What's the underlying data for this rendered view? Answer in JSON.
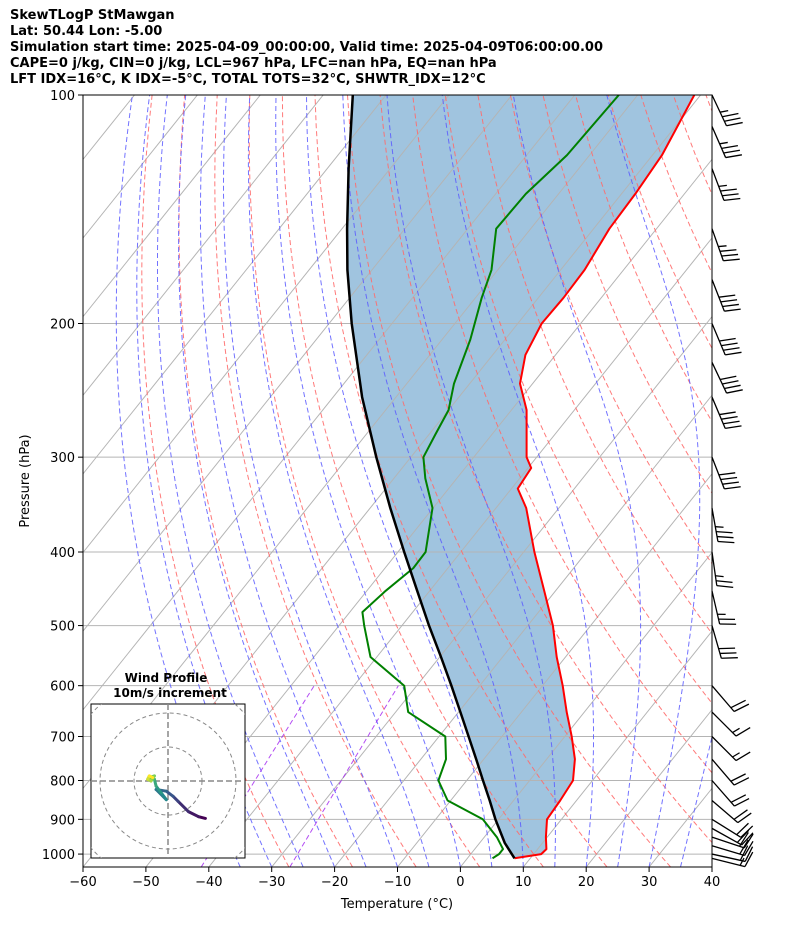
{
  "header": {
    "lines": [
      "SkewTLogP StMawgan",
      "Lat: 50.44   Lon: -5.00",
      "Simulation start time: 2025-04-09_00:00:00, Valid time: 2025-04-09T06:00:00.00",
      "CAPE=0 j/kg, CIN=0 j/kg, LCL=967 hPa, LFC=nan hPa, EQ=nan hPa",
      "LFT IDX=16°C, K IDX=-5°C, TOTAL TOTS=32°C, SHWTR_IDX=12°C"
    ]
  },
  "chart_data": [
    {
      "type": "line",
      "subtype": "skew-t-log-p",
      "xlabel": "Temperature (°C)",
      "ylabel": "Pressure (hPa)",
      "xlim": [
        -60,
        40
      ],
      "ylim": [
        1040,
        100
      ],
      "y_scale": "log",
      "xticks": [
        -60,
        -50,
        -40,
        -30,
        -20,
        -10,
        0,
        10,
        20,
        30,
        40
      ],
      "xtick_labels": [
        "−60",
        "−50",
        "−40",
        "−30",
        "−20",
        "−10",
        "0",
        "10",
        "20",
        "30",
        "40"
      ],
      "yticks": [
        100,
        200,
        300,
        400,
        500,
        600,
        700,
        800,
        900,
        1000
      ],
      "grid": true,
      "colors": {
        "temperature": "#ff0000",
        "dewpoint": "#008000",
        "parcel": "#000000",
        "shade": "#a0c4df",
        "dry_adiabat": "#ff6b6b",
        "moist_adiabat": "#5a5aff",
        "mixing_ratio": "#a020f0",
        "isotherm": "#b4b4b4"
      },
      "series": [
        {
          "role": "temperature",
          "points": [
            {
              "p": 1013,
              "t": 7.5
            },
            {
              "p": 1000,
              "t": 11.2
            },
            {
              "p": 985,
              "t": 11.4
            },
            {
              "p": 950,
              "t": 9.8
            },
            {
              "p": 900,
              "t": 7.7
            },
            {
              "p": 850,
              "t": 7.4
            },
            {
              "p": 800,
              "t": 6.9
            },
            {
              "p": 750,
              "t": 4.5
            },
            {
              "p": 700,
              "t": 1.1
            },
            {
              "p": 650,
              "t": -2.8
            },
            {
              "p": 600,
              "t": -6.8
            },
            {
              "p": 550,
              "t": -11.4
            },
            {
              "p": 500,
              "t": -16.0
            },
            {
              "p": 450,
              "t": -21.8
            },
            {
              "p": 400,
              "t": -28.3
            },
            {
              "p": 350,
              "t": -35.2
            },
            {
              "p": 330,
              "t": -39.0
            },
            {
              "p": 310,
              "t": -39.5
            },
            {
              "p": 300,
              "t": -41.6
            },
            {
              "p": 280,
              "t": -44.5
            },
            {
              "p": 260,
              "t": -47.6
            },
            {
              "p": 240,
              "t": -52.0
            },
            {
              "p": 220,
              "t": -54.8
            },
            {
              "p": 200,
              "t": -56.2
            },
            {
              "p": 185,
              "t": -56.0
            },
            {
              "p": 170,
              "t": -56.2
            },
            {
              "p": 150,
              "t": -57.5
            },
            {
              "p": 135,
              "t": -57.8
            },
            {
              "p": 120,
              "t": -58.5
            },
            {
              "p": 100,
              "t": -61.0
            }
          ]
        },
        {
          "role": "dewpoint",
          "points": [
            {
              "p": 1013,
              "t": 4.0
            },
            {
              "p": 1000,
              "t": 4.5
            },
            {
              "p": 985,
              "t": 4.5
            },
            {
              "p": 950,
              "t": 2.0
            },
            {
              "p": 900,
              "t": -2.5
            },
            {
              "p": 850,
              "t": -10.5
            },
            {
              "p": 800,
              "t": -14.5
            },
            {
              "p": 750,
              "t": -16.0
            },
            {
              "p": 700,
              "t": -19.0
            },
            {
              "p": 650,
              "t": -28.0
            },
            {
              "p": 600,
              "t": -32.0
            },
            {
              "p": 550,
              "t": -41.0
            },
            {
              "p": 500,
              "t": -46.0
            },
            {
              "p": 480,
              "t": -48.0
            },
            {
              "p": 450,
              "t": -47.0
            },
            {
              "p": 420,
              "t": -45.5
            },
            {
              "p": 400,
              "t": -45.6
            },
            {
              "p": 350,
              "t": -50.1
            },
            {
              "p": 320,
              "t": -55.0
            },
            {
              "p": 300,
              "t": -58.0
            },
            {
              "p": 280,
              "t": -59.0
            },
            {
              "p": 260,
              "t": -60.0
            },
            {
              "p": 240,
              "t": -62.5
            },
            {
              "p": 210,
              "t": -65.5
            },
            {
              "p": 185,
              "t": -69.0
            },
            {
              "p": 170,
              "t": -71.0
            },
            {
              "p": 150,
              "t": -75.5
            },
            {
              "p": 135,
              "t": -75.2
            },
            {
              "p": 120,
              "t": -73.6
            },
            {
              "p": 100,
              "t": -73.0
            }
          ]
        },
        {
          "role": "parcel",
          "points": [
            {
              "p": 1013,
              "t": 7.5
            },
            {
              "p": 967,
              "t": 4.0
            },
            {
              "p": 900,
              "t": -0.5
            },
            {
              "p": 850,
              "t": -3.8
            },
            {
              "p": 800,
              "t": -7.4
            },
            {
              "p": 750,
              "t": -11.2
            },
            {
              "p": 700,
              "t": -15.3
            },
            {
              "p": 650,
              "t": -19.7
            },
            {
              "p": 600,
              "t": -24.5
            },
            {
              "p": 550,
              "t": -29.8
            },
            {
              "p": 500,
              "t": -35.7
            },
            {
              "p": 450,
              "t": -42.0
            },
            {
              "p": 400,
              "t": -49.0
            },
            {
              "p": 350,
              "t": -56.8
            },
            {
              "p": 300,
              "t": -65.5
            },
            {
              "p": 250,
              "t": -75.4
            },
            {
              "p": 200,
              "t": -86.4
            },
            {
              "p": 170,
              "t": -93.9
            },
            {
              "p": 150,
              "t": -99.2
            },
            {
              "p": 125,
              "t": -106.6
            },
            {
              "p": 100,
              "t": -115.3
            }
          ]
        }
      ]
    },
    {
      "type": "line",
      "subtype": "wind-barbs",
      "levels": [
        {
          "p": 1013,
          "u": 8,
          "v": 2
        },
        {
          "p": 1000,
          "u": 9,
          "v": 2
        },
        {
          "p": 975,
          "u": 10,
          "v": 3
        },
        {
          "p": 950,
          "u": 9,
          "v": 3
        },
        {
          "p": 925,
          "u": 9,
          "v": 5
        },
        {
          "p": 900,
          "u": 8,
          "v": 5
        },
        {
          "p": 850,
          "u": 7,
          "v": 6
        },
        {
          "p": 800,
          "u": 7,
          "v": 8
        },
        {
          "p": 750,
          "u": 6,
          "v": 7
        },
        {
          "p": 700,
          "u": 6,
          "v": 6
        },
        {
          "p": 650,
          "u": 6,
          "v": 6
        },
        {
          "p": 600,
          "u": 6,
          "v": 7
        },
        {
          "p": 500,
          "u": 4,
          "v": 14
        },
        {
          "p": 450,
          "u": 3,
          "v": 13
        },
        {
          "p": 400,
          "u": 2,
          "v": 14
        },
        {
          "p": 350,
          "u": 3,
          "v": 17
        },
        {
          "p": 300,
          "u": 7,
          "v": 18
        },
        {
          "p": 250,
          "u": 8,
          "v": 19
        },
        {
          "p": 225,
          "u": 9,
          "v": 19
        },
        {
          "p": 200,
          "u": 8,
          "v": 19
        },
        {
          "p": 175,
          "u": 7,
          "v": 18
        },
        {
          "p": 150,
          "u": 6,
          "v": 17
        },
        {
          "p": 125,
          "u": 6,
          "v": 16
        },
        {
          "p": 110,
          "u": 7,
          "v": 16
        },
        {
          "p": 100,
          "u": 8,
          "v": 17
        }
      ]
    },
    {
      "type": "line",
      "subtype": "hodograph",
      "title": "Wind Profile",
      "subtitle": "10m/s increment",
      "rings": [
        10,
        20,
        30
      ],
      "points": [
        {
          "u": 11.0,
          "v": -11.0
        },
        {
          "u": 9.0,
          "v": -10.5
        },
        {
          "u": 6.0,
          "v": -9.0
        },
        {
          "u": 3.0,
          "v": -6.0
        },
        {
          "u": 1.5,
          "v": -4.5
        },
        {
          "u": -0.5,
          "v": -3.0
        },
        {
          "u": -3.5,
          "v": -2.5
        },
        {
          "u": -0.5,
          "v": -5.5
        },
        {
          "u": -2.0,
          "v": -3.5
        },
        {
          "u": -3.5,
          "v": -1.5
        },
        {
          "u": -4.0,
          "v": 0.5
        },
        {
          "u": -5.5,
          "v": 1.0
        },
        {
          "u": -4.0,
          "v": 1.5
        },
        {
          "u": -5.0,
          "v": 0.0
        },
        {
          "u": -6.0,
          "v": 0.5
        },
        {
          "u": -5.5,
          "v": 1.5
        },
        {
          "u": -4.5,
          "v": 1.0
        }
      ]
    }
  ]
}
